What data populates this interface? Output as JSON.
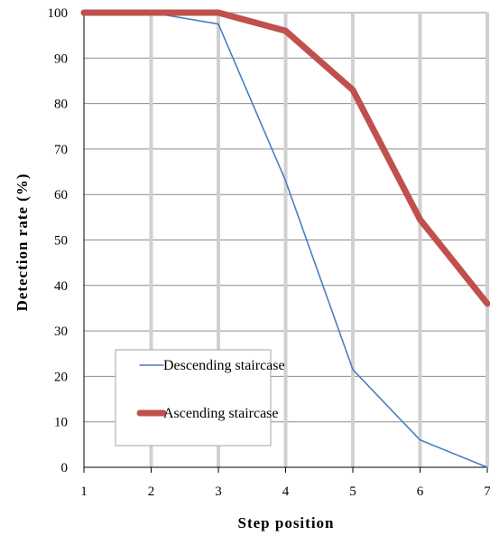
{
  "chart_data": {
    "type": "line",
    "title": "",
    "xlabel": "Step position",
    "ylabel": "Detection rate (%)",
    "xlim": [
      1,
      7
    ],
    "ylim": [
      0,
      100
    ],
    "x": [
      1,
      2,
      3,
      4,
      5,
      6,
      7
    ],
    "x_ticks": [
      "1",
      "2",
      "3",
      "4",
      "5",
      "6",
      "7"
    ],
    "y_ticks": [
      "0",
      "10",
      "20",
      "30",
      "40",
      "50",
      "60",
      "70",
      "80",
      "90",
      "100"
    ],
    "grid": "vertical and horizontal",
    "legend_position": "bottom-left",
    "series": [
      {
        "name": "Descending staircase",
        "values": [
          100,
          100,
          97.5,
          63,
          21.5,
          6,
          0
        ],
        "color": "#4a7fbf"
      },
      {
        "name": "Ascending staircase",
        "values": [
          100,
          100,
          100,
          96,
          83,
          54.5,
          36
        ],
        "color": "#c0504d"
      }
    ]
  }
}
